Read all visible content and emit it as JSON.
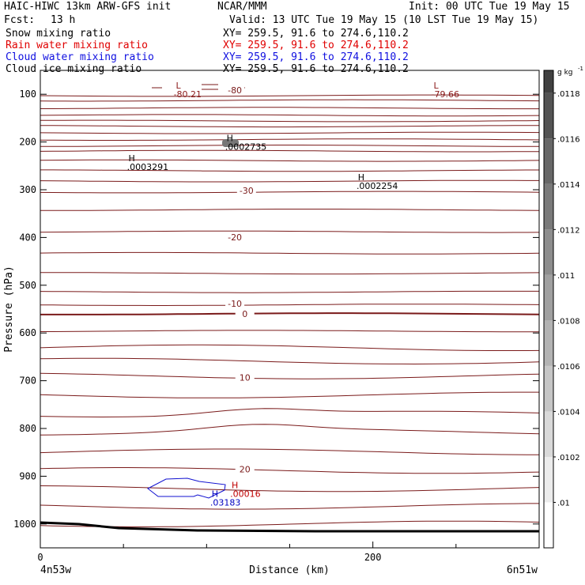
{
  "header": {
    "model": "HAIC-HIWC 13km ARW-GFS init",
    "org": "NCAR/MMM",
    "init": "Init: 00 UTC Tue 19 May 15",
    "fcst_label": "Fcst:",
    "fcst_value": "13 h",
    "valid": "Valid: 13 UTC Tue 19 May 15 (10 LST Tue 19 May 15)"
  },
  "fields": [
    {
      "name": "Snow mixing ratio",
      "xy": "XY= 259.5, 91.6 to 274.6,110.2",
      "color": "#000000"
    },
    {
      "name": "Rain water mixing ratio",
      "xy": "XY= 259.5, 91.6 to 274.6,110.2",
      "color": "#e00000"
    },
    {
      "name": "Cloud water mixing ratio",
      "xy": "XY= 259.5, 91.6 to 274.6,110.2",
      "color": "#1010e0"
    },
    {
      "name": "Cloud ice mixing ratio",
      "xy": "XY= 259.5, 91.6 to 274.6,110.2",
      "color": "#000000"
    }
  ],
  "chart_data": {
    "type": "cross-section",
    "xlabel": "Distance (km)",
    "ylabel": "Pressure (hPa)",
    "xlim": [
      0,
      300
    ],
    "ylim": [
      1050,
      50
    ],
    "x_ticks": [
      0,
      200
    ],
    "y_ticks": [
      100,
      200,
      300,
      400,
      500,
      600,
      700,
      800,
      900,
      1000
    ],
    "x_endpoint_labels": {
      "left": "4n53w",
      "right": "6n51w"
    },
    "temperature_labels": [
      {
        "text": "-80",
        "x": 117,
        "p": 91
      },
      {
        "text": "-30",
        "x": 124,
        "p": 302
      },
      {
        "text": "-20",
        "x": 117,
        "p": 399
      },
      {
        "text": "-10",
        "x": 117,
        "p": 538
      },
      {
        "text": "0",
        "x": 123,
        "p": 560
      },
      {
        "text": "10",
        "x": 123,
        "p": 693
      },
      {
        "text": "20",
        "x": 123,
        "p": 885
      }
    ],
    "extrema": [
      {
        "letter": "L",
        "value": "-80.21",
        "x": 83,
        "p": 88,
        "color": "#8b1a1a"
      },
      {
        "letter": "L",
        "value": "-79.66",
        "x": 238,
        "p": 88,
        "color": "#8b1a1a"
      },
      {
        "letter": "H",
        "value": ".0002735",
        "x": 114,
        "p": 198,
        "color": "#000000"
      },
      {
        "letter": "H",
        "value": ".0003291",
        "x": 55,
        "p": 240,
        "color": "#000000"
      },
      {
        "letter": "H",
        "value": ".0002254",
        "x": 193,
        "p": 280,
        "color": "#000000"
      },
      {
        "letter": "H",
        "value": ".00016",
        "x": 117,
        "p": 925,
        "color": "#c00000"
      },
      {
        "letter": "H",
        "value": ".03183",
        "x": 105,
        "p": 943,
        "color": "#0000c0"
      }
    ],
    "colorbar": {
      "unit": "g kg",
      "unit_exp": "-1",
      "labels": [
        ".01",
        ".0102",
        ".0104",
        ".0106",
        ".0108",
        ".011",
        ".0112",
        ".0114",
        ".0116",
        ".0118"
      ]
    }
  }
}
